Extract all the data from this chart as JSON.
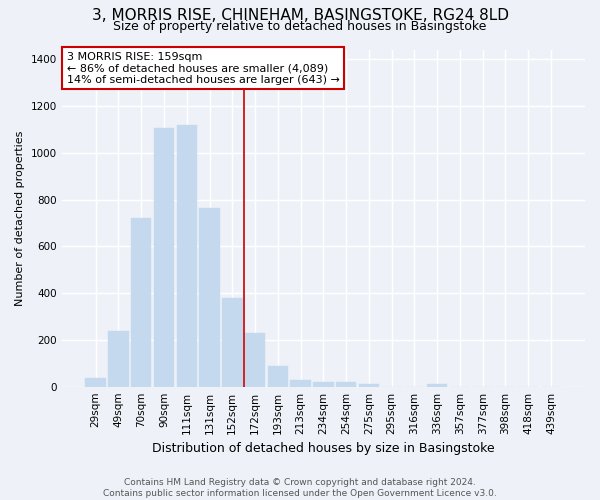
{
  "title": "3, MORRIS RISE, CHINEHAM, BASINGSTOKE, RG24 8LD",
  "subtitle": "Size of property relative to detached houses in Basingstoke",
  "xlabel": "Distribution of detached houses by size in Basingstoke",
  "ylabel": "Number of detached properties",
  "bar_labels": [
    "29sqm",
    "49sqm",
    "70sqm",
    "90sqm",
    "111sqm",
    "131sqm",
    "152sqm",
    "172sqm",
    "193sqm",
    "213sqm",
    "234sqm",
    "254sqm",
    "275sqm",
    "295sqm",
    "316sqm",
    "336sqm",
    "357sqm",
    "377sqm",
    "398sqm",
    "418sqm",
    "439sqm"
  ],
  "bar_values": [
    35,
    240,
    720,
    1105,
    1120,
    765,
    380,
    230,
    90,
    30,
    20,
    20,
    10,
    0,
    0,
    10,
    0,
    0,
    0,
    0,
    0
  ],
  "bar_color": "#c5d9ee",
  "bar_edge_color": "#c5d9ee",
  "vline_color": "#cc0000",
  "annotation_title": "3 MORRIS RISE: 159sqm",
  "annotation_line1": "← 86% of detached houses are smaller (4,089)",
  "annotation_line2": "14% of semi-detached houses are larger (643) →",
  "annotation_box_color": "white",
  "annotation_box_edgecolor": "#cc0000",
  "ylim": [
    0,
    1440
  ],
  "yticks": [
    0,
    200,
    400,
    600,
    800,
    1000,
    1200,
    1400
  ],
  "footer_line1": "Contains HM Land Registry data © Crown copyright and database right 2024.",
  "footer_line2": "Contains public sector information licensed under the Open Government Licence v3.0.",
  "bg_color": "#eef2f8",
  "grid_color": "white",
  "title_fontsize": 11,
  "subtitle_fontsize": 9,
  "ylabel_fontsize": 8,
  "xlabel_fontsize": 9,
  "tick_fontsize": 7.5,
  "footer_fontsize": 6.5,
  "annotation_fontsize": 8
}
